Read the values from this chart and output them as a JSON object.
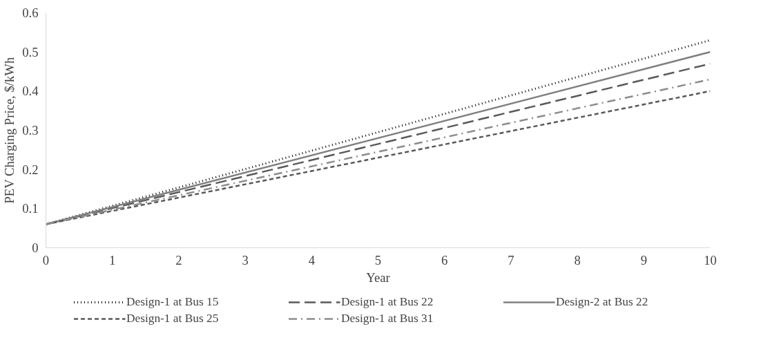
{
  "chart_data": {
    "type": "line",
    "xlabel": "Year",
    "ylabel": "PEV Charging Price, $/kWh",
    "x": [
      0,
      10
    ],
    "xlim": [
      0,
      10
    ],
    "xticks": [
      0,
      1,
      2,
      3,
      4,
      5,
      6,
      7,
      8,
      9,
      10
    ],
    "ylim": [
      0,
      0.6
    ],
    "yticks": [
      0,
      0.1,
      0.2,
      0.3,
      0.4,
      0.5,
      0.6
    ],
    "grid": false,
    "legend": "bottom",
    "marker": "none",
    "series": [
      {
        "name": "Design-1 at Bus 15",
        "color": "#000000",
        "line_style": "dotted",
        "values": [
          0.06,
          0.53
        ]
      },
      {
        "name": "Design-1 at Bus 22",
        "color": "#595959",
        "line_style": "longdash",
        "values": [
          0.06,
          0.47
        ]
      },
      {
        "name": "Design-2 at Bus 22",
        "color": "#808080",
        "line_style": "solid",
        "values": [
          0.06,
          0.5
        ]
      },
      {
        "name": "Design-1 at Bus 25",
        "color": "#595959",
        "line_style": "dashed",
        "values": [
          0.06,
          0.4
        ]
      },
      {
        "name": "Design-1 at Bus 31",
        "color": "#8c8c8c",
        "line_style": "dashdot",
        "values": [
          0.06,
          0.43
        ]
      }
    ]
  }
}
